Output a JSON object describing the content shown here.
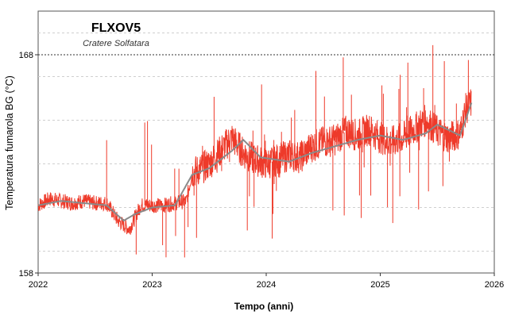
{
  "chart_data": {
    "type": "line",
    "title": "FLXOV5",
    "subtitle": "Cratere Solfatara",
    "xlabel": "Tempo (anni)",
    "ylabel": "Temperatura fumarola BG (°C)",
    "xlim": [
      2022,
      2026
    ],
    "ylim": [
      158,
      170
    ],
    "x_ticks": [
      "2022",
      "2023",
      "2024",
      "2025",
      "2026"
    ],
    "y_ticks": [
      "158",
      "168"
    ],
    "reference_line": 168,
    "grid": true,
    "colors": {
      "raw": "#ee3a2a",
      "smoothed": "#8a8a8a",
      "reference": "#333333"
    },
    "series": [
      {
        "role": "raw",
        "x": [
          2022.0,
          2022.1,
          2022.2,
          2022.3,
          2022.4,
          2022.5,
          2022.6,
          2022.7,
          2022.8,
          2022.9,
          2023.0,
          2023.1,
          2023.2,
          2023.3,
          2023.35,
          2023.4,
          2023.5,
          2023.6,
          2023.7,
          2023.8,
          2023.9,
          2024.0,
          2024.1,
          2024.2,
          2024.3,
          2024.4,
          2024.5,
          2024.6,
          2024.7,
          2024.8,
          2024.9,
          2025.0,
          2025.1,
          2025.2,
          2025.3,
          2025.4,
          2025.5,
          2025.6,
          2025.7,
          2025.75,
          2025.8
        ],
        "y": [
          161.1,
          161.4,
          161.3,
          161.2,
          161.3,
          161.2,
          161.2,
          160.4,
          160.0,
          161.1,
          161.1,
          161.1,
          161.2,
          161.3,
          162.6,
          162.7,
          163.0,
          163.6,
          164.2,
          163.5,
          163.2,
          163.0,
          163.2,
          163.4,
          163.3,
          163.8,
          164.0,
          164.1,
          164.5,
          164.3,
          164.6,
          164.2,
          164.0,
          164.2,
          164.6,
          165.0,
          164.5,
          164.2,
          164.4,
          165.5,
          165.8
        ]
      },
      {
        "role": "smoothed",
        "x": [
          2022.0,
          2022.2,
          2022.4,
          2022.6,
          2022.75,
          2022.85,
          2023.0,
          2023.2,
          2023.35,
          2023.5,
          2023.7,
          2023.8,
          2023.95,
          2024.2,
          2024.4,
          2024.6,
          2024.8,
          2025.0,
          2025.2,
          2025.4,
          2025.5,
          2025.7,
          2025.8
        ],
        "y": [
          161.1,
          161.3,
          161.2,
          161.1,
          160.4,
          160.7,
          161.0,
          161.1,
          162.5,
          162.8,
          163.6,
          164.1,
          163.3,
          163.1,
          163.5,
          163.8,
          164.1,
          164.3,
          164.1,
          164.4,
          164.8,
          164.3,
          165.8
        ]
      }
    ]
  }
}
